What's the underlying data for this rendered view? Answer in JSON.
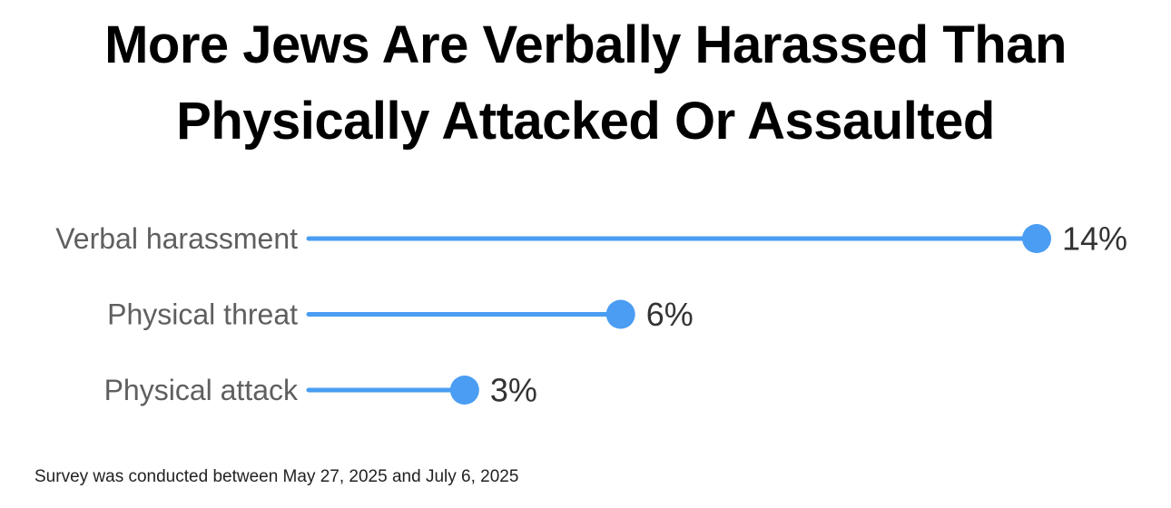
{
  "title": {
    "line1": "More Jews Are Verbally Harassed Than",
    "line2": "Physically Attacked Or Assaulted"
  },
  "note": "Survey was conducted between May 27, 2025 and July 6, 2025",
  "colors": {
    "series": "#4a9df2",
    "label": "#5f5f5f",
    "value": "#333333"
  },
  "chart_data": {
    "type": "lollipop",
    "categories": [
      "Verbal harassment",
      "Physical threat",
      "Physical attack"
    ],
    "values": [
      14,
      6,
      3
    ],
    "value_labels": [
      "14%",
      "6%",
      "3%"
    ],
    "unit": "%",
    "xlim": [
      0,
      14
    ],
    "grid": false,
    "legend": "none"
  }
}
